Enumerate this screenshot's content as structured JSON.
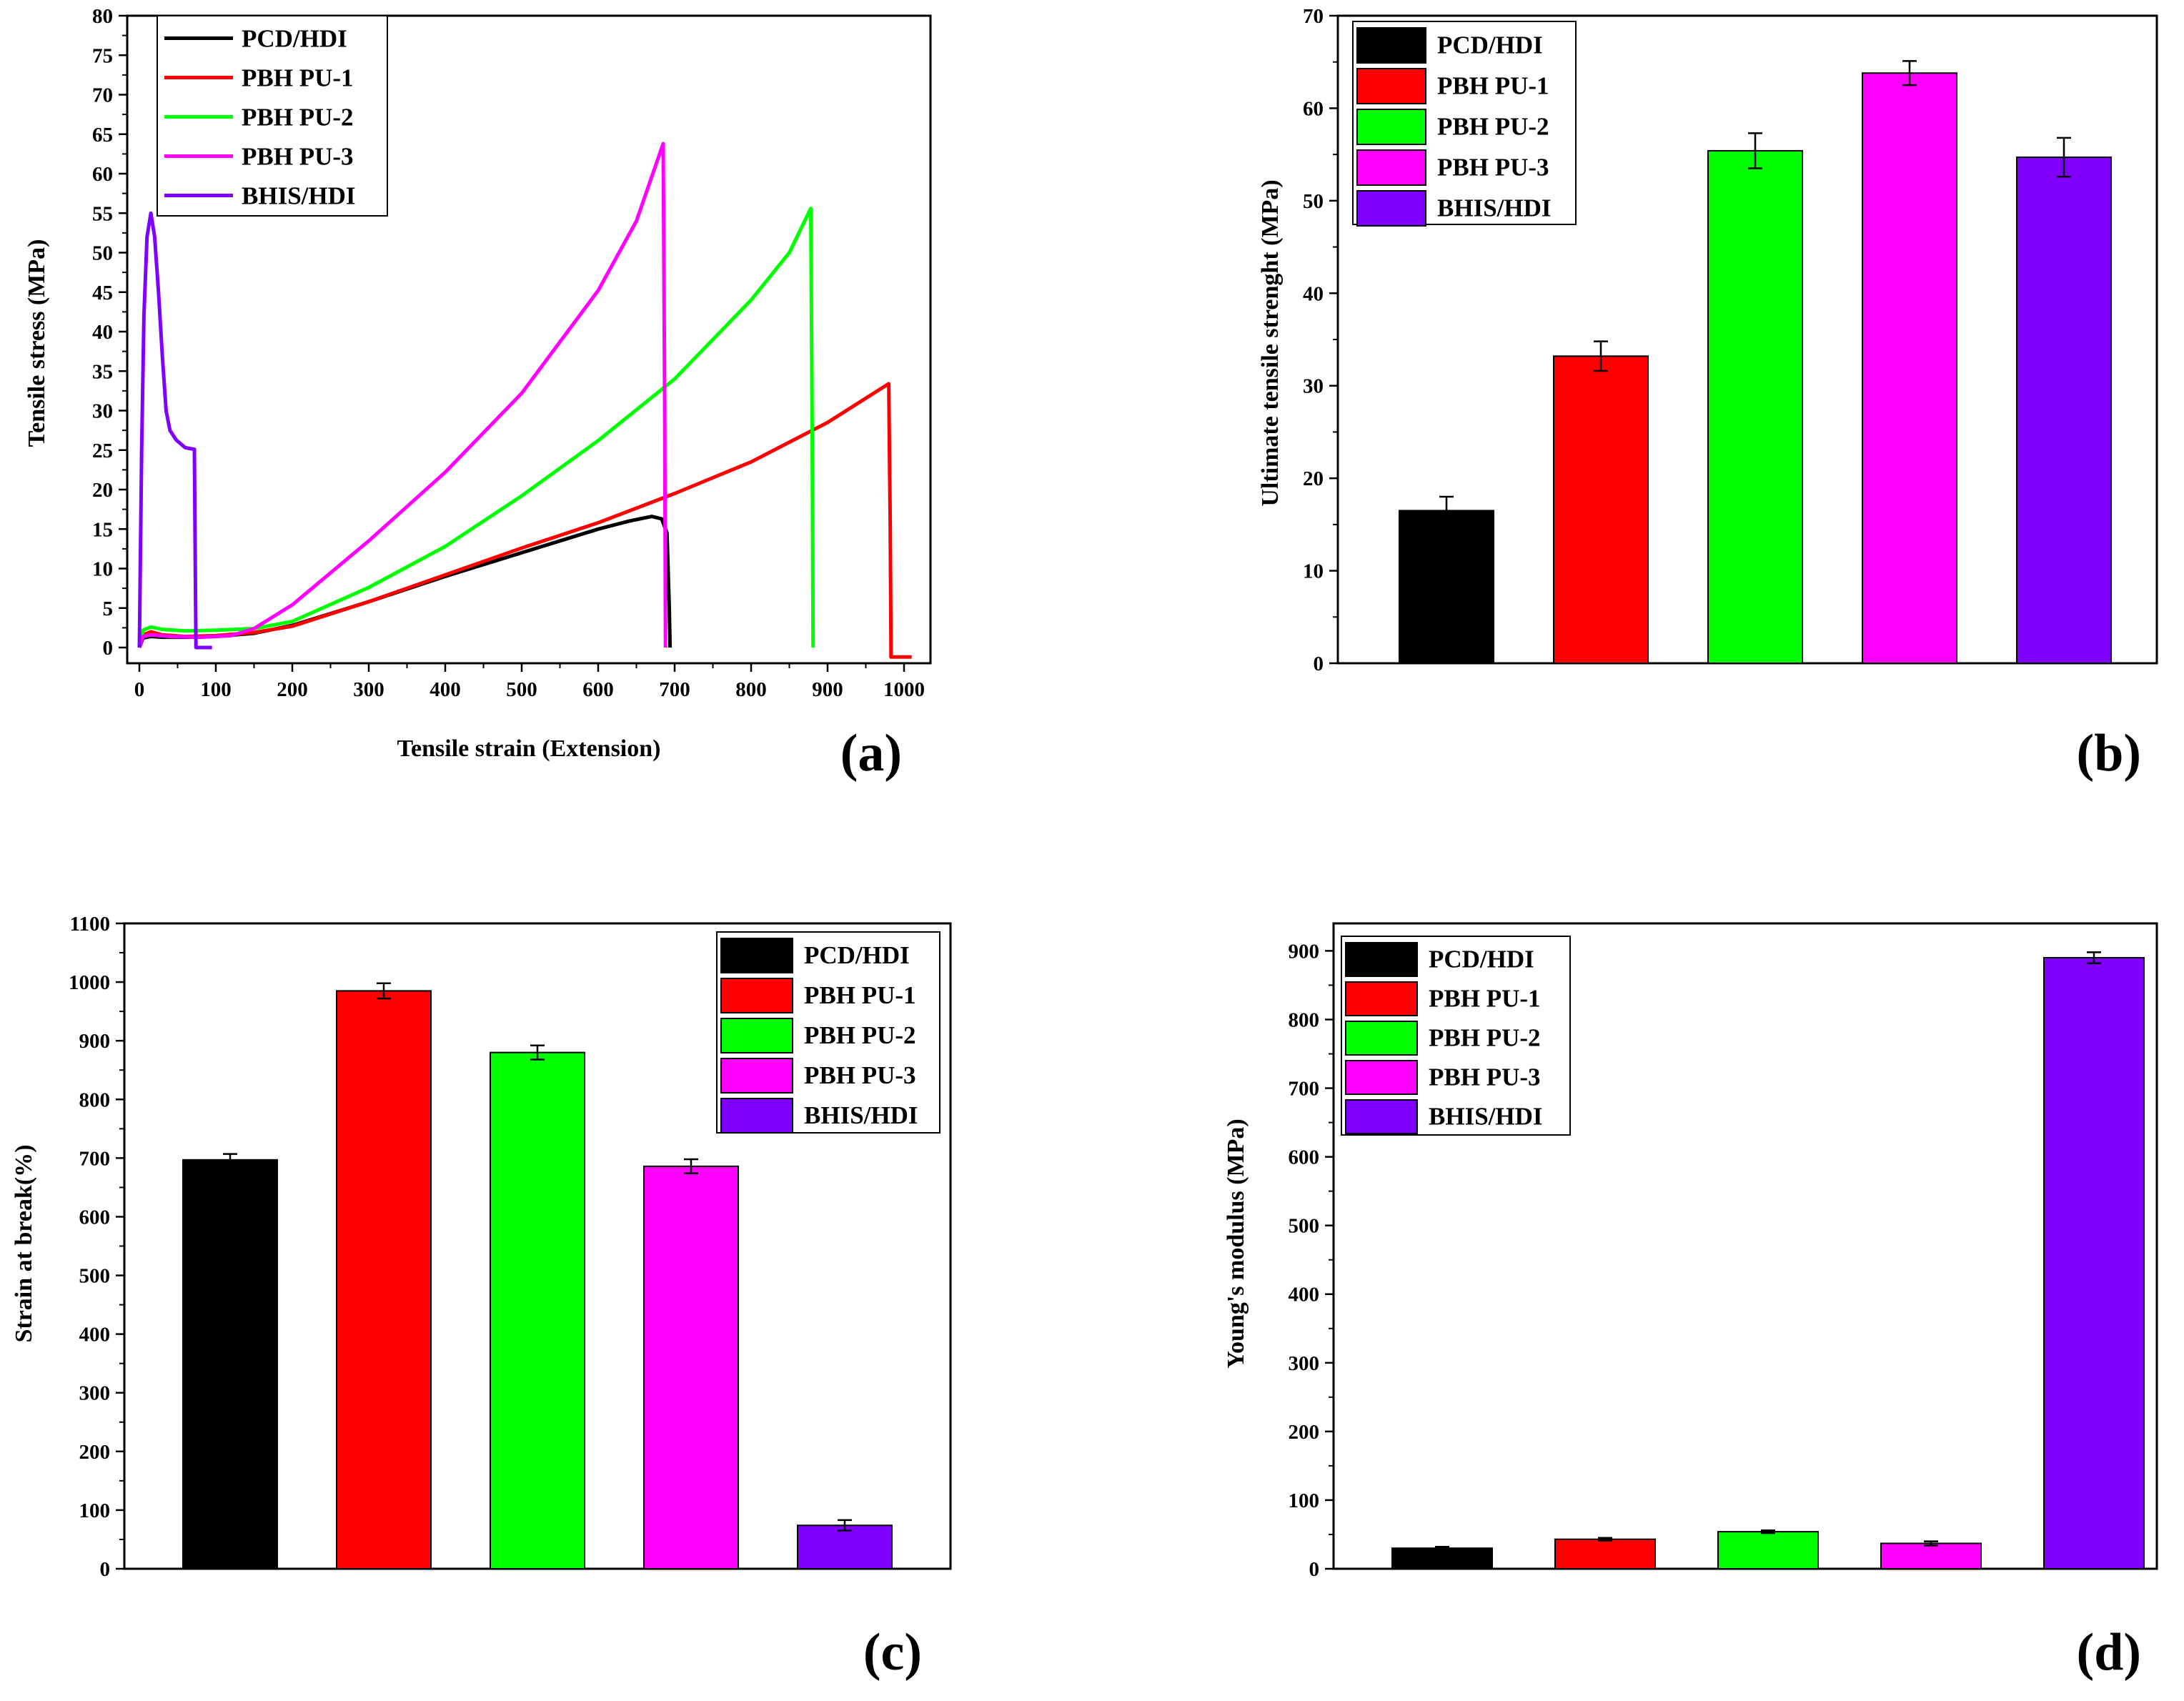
{
  "colors": {
    "PCD/HDI": "#000000",
    "PBH PU-1": "#ff0000",
    "PBH PU-2": "#00ff00",
    "PBH PU-3": "#ff00ff",
    "BHIS/HDI": "#8000ff"
  },
  "chart_data": [
    {
      "id": "a",
      "panel_label": "(a)",
      "type": "line",
      "title": "",
      "xlabel": "Tensile strain (Extension)",
      "ylabel": "Tensile stress (MPa)",
      "xlim": [
        -20,
        1050
      ],
      "ylim": [
        -2,
        80
      ],
      "xticks": [
        0,
        100,
        200,
        300,
        400,
        500,
        600,
        700,
        800,
        900,
        1000
      ],
      "yticks": [
        0,
        5,
        10,
        15,
        20,
        25,
        30,
        35,
        40,
        45,
        50,
        55,
        60,
        65,
        70,
        75,
        80
      ],
      "legend_position": "top-left",
      "series": [
        {
          "name": "PCD/HDI",
          "x": [
            0,
            5,
            15,
            30,
            60,
            100,
            150,
            200,
            300,
            400,
            500,
            550,
            600,
            640,
            670,
            683,
            690,
            693,
            694
          ],
          "y": [
            0,
            1.2,
            1.4,
            1.3,
            1.3,
            1.4,
            1.8,
            2.8,
            5.8,
            9.0,
            12.0,
            13.5,
            15.0,
            16.0,
            16.6,
            16.3,
            14.5,
            5,
            0
          ]
        },
        {
          "name": "PBH PU-1",
          "x": [
            0,
            5,
            15,
            30,
            60,
            100,
            150,
            200,
            300,
            400,
            500,
            600,
            700,
            800,
            900,
            980,
            982,
            983,
            1010
          ],
          "y": [
            0,
            1.6,
            2.0,
            1.6,
            1.4,
            1.5,
            1.9,
            2.7,
            5.8,
            9.2,
            12.6,
            15.8,
            19.5,
            23.5,
            28.5,
            33.4,
            15,
            -1.2,
            -1.2
          ]
        },
        {
          "name": "PBH PU-2",
          "x": [
            0,
            5,
            15,
            30,
            60,
            100,
            150,
            200,
            300,
            400,
            500,
            600,
            700,
            800,
            850,
            878,
            880,
            881
          ],
          "y": [
            0,
            2.2,
            2.6,
            2.3,
            2.1,
            2.2,
            2.4,
            3.3,
            7.6,
            12.8,
            19.2,
            26.2,
            34.0,
            44.0,
            50.0,
            55.6,
            25,
            0
          ]
        },
        {
          "name": "PBH PU-3",
          "x": [
            0,
            5,
            15,
            40,
            80,
            120,
            150,
            200,
            300,
            400,
            500,
            600,
            650,
            685,
            687,
            688
          ],
          "y": [
            0,
            1.4,
            1.6,
            1.4,
            1.3,
            1.5,
            2.4,
            5.4,
            13.5,
            22.2,
            32.2,
            45.2,
            54.0,
            63.8,
            30,
            0
          ]
        },
        {
          "name": "BHIS/HDI",
          "x": [
            0,
            3,
            6,
            10,
            15,
            20,
            25,
            30,
            35,
            40,
            48,
            60,
            72,
            73,
            74,
            95
          ],
          "y": [
            0,
            25,
            42,
            52,
            55,
            52,
            45,
            37,
            30,
            27.5,
            26.3,
            25.3,
            25.1,
            12,
            0,
            0
          ]
        }
      ]
    },
    {
      "id": "b",
      "panel_label": "(b)",
      "type": "bar",
      "title": "",
      "xlabel": "",
      "ylabel": "Ultimate tensile strenght (MPa)",
      "categories": [
        "PCD/HDI",
        "PBH PU-1",
        "PBH PU-2",
        "PBH PU-3",
        "BHIS/HDI"
      ],
      "values": [
        16.5,
        33.2,
        55.4,
        63.8,
        54.7
      ],
      "errors": [
        1.5,
        1.6,
        1.9,
        1.3,
        2.1
      ],
      "ylim": [
        0,
        70
      ],
      "yticks": [
        0,
        10,
        20,
        30,
        40,
        50,
        60,
        70
      ],
      "legend_position": "top-left"
    },
    {
      "id": "c",
      "panel_label": "(c)",
      "type": "bar",
      "title": "",
      "xlabel": "",
      "ylabel": "Strain at break(%)",
      "categories": [
        "PCD/HDI",
        "PBH PU-1",
        "PBH PU-2",
        "PBH PU-3",
        "BHIS/HDI"
      ],
      "values": [
        697,
        985,
        880,
        686,
        74
      ],
      "errors": [
        10,
        13,
        12,
        12,
        9
      ],
      "ylim": [
        0,
        1100
      ],
      "yticks": [
        0,
        100,
        200,
        300,
        400,
        500,
        600,
        700,
        800,
        900,
        1000,
        1100
      ],
      "legend_position": "top-right"
    },
    {
      "id": "d",
      "panel_label": "(d)",
      "type": "bar",
      "title": "",
      "xlabel": "",
      "ylabel": "Young's modulus (MPa)",
      "categories": [
        "PCD/HDI",
        "PBH PU-1",
        "PBH PU-2",
        "PBH PU-3",
        "BHIS/HDI"
      ],
      "values": [
        30,
        43,
        54,
        37,
        890
      ],
      "errors": [
        2,
        2,
        2,
        3,
        8
      ],
      "ylim": [
        0,
        940
      ],
      "yticks": [
        0,
        100,
        200,
        300,
        400,
        500,
        600,
        700,
        800,
        900
      ],
      "legend_position": "top-left"
    }
  ]
}
